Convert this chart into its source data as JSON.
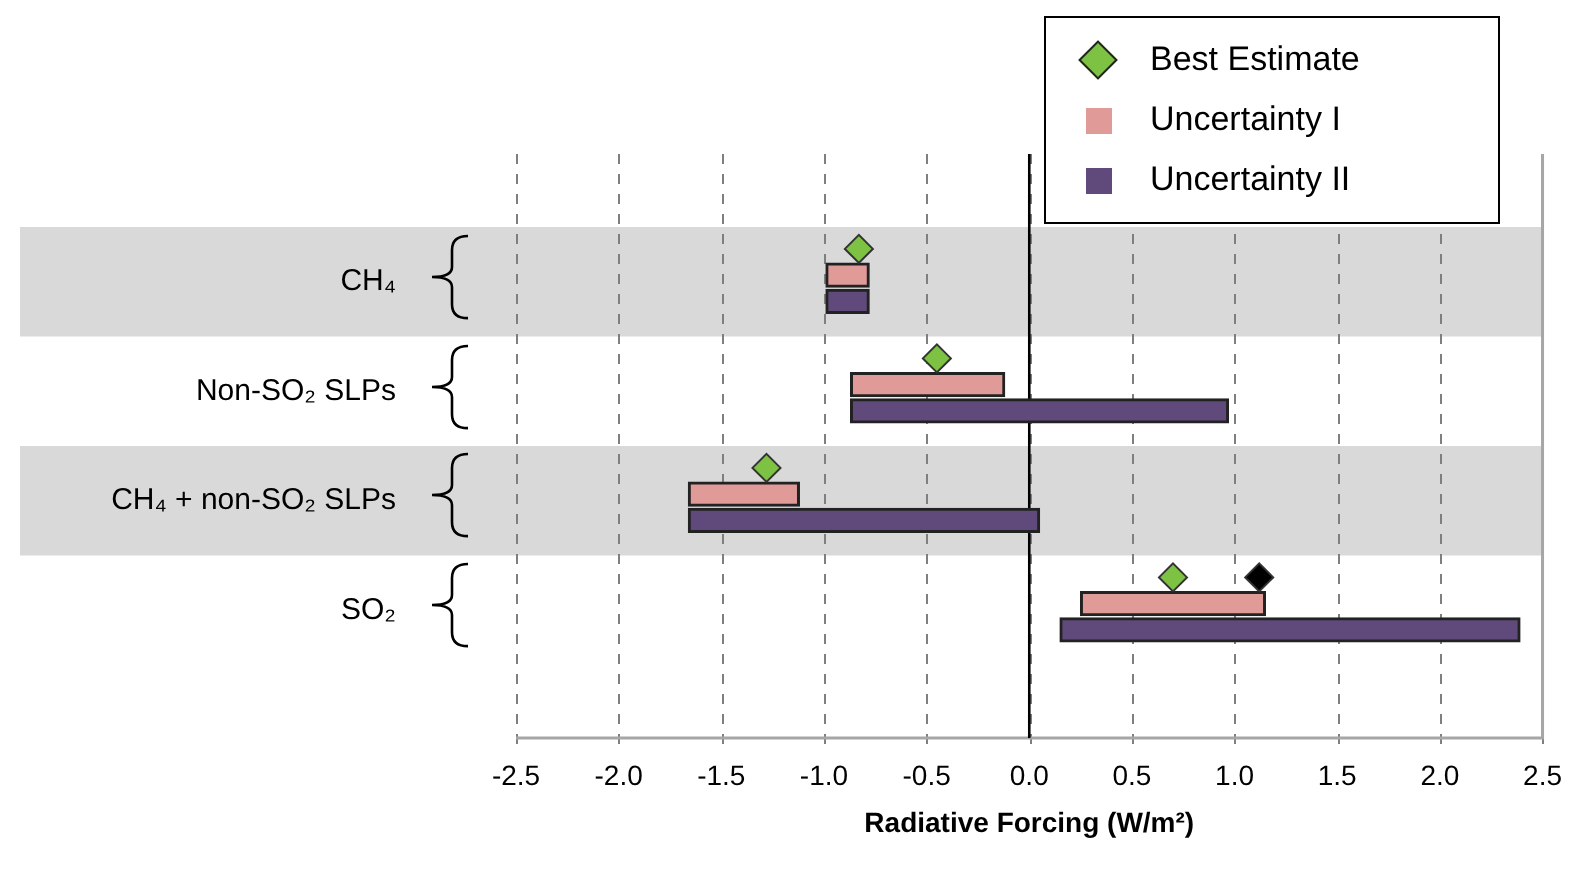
{
  "chart_data": {
    "type": "bar",
    "orientation": "horizontal",
    "xlabel": "Radiative Forcing (W/m²)",
    "categories": [
      "CH₄",
      "Non-SO₂ SLPs",
      "CH₄ + non-SO₂ SLPs",
      "SO₂"
    ],
    "series": [
      {
        "name": "Best Estimate",
        "type": "scatter",
        "marker": "diamond",
        "color": "#7dc242",
        "values": [
          -0.83,
          -0.45,
          -1.28,
          0.7
        ]
      },
      {
        "type": "scatter",
        "marker": "diamond",
        "color": "#000000",
        "values": [
          null,
          null,
          null,
          1.12
        ]
      },
      {
        "name": "Uncertainty I",
        "color": "#e09a98",
        "base": [
          -0.99,
          -0.87,
          -1.66,
          0.25
        ],
        "values": [
          0.21,
          0.75,
          0.54,
          0.9
        ]
      },
      {
        "name": "Uncertainty II",
        "color": "#604a7b",
        "base": [
          -0.99,
          -0.87,
          -1.66,
          0.15
        ],
        "values": [
          0.21,
          1.84,
          1.71,
          2.24
        ]
      }
    ],
    "xlim": [
      -2.5,
      2.5
    ],
    "xticks": [
      -2.5,
      {
        "value": -2,
        "label": "-2.0"
      },
      -1.5,
      {
        "value": -1,
        "label": "-1.0"
      },
      -0.5,
      {
        "value": 0,
        "label": "0.0"
      },
      0.5,
      {
        "value": 1,
        "label": "1.0"
      },
      1.5,
      {
        "value": 2,
        "label": "2.0"
      },
      2.5
    ],
    "bands": [
      {
        "axis": "y",
        "from": "CH₄",
        "to": "CH₄",
        "color": "#d9d9d9"
      },
      {
        "axis": "y",
        "from": "CH₄ + non-SO₂ SLPs",
        "to": "CH₄ + non-SO₂ SLPs",
        "color": "#d9d9d9"
      }
    ],
    "ref_lines": [
      {
        "axis": "x",
        "value": 0,
        "color": "#000000"
      }
    ],
    "grid": "x",
    "legend": "top right"
  }
}
